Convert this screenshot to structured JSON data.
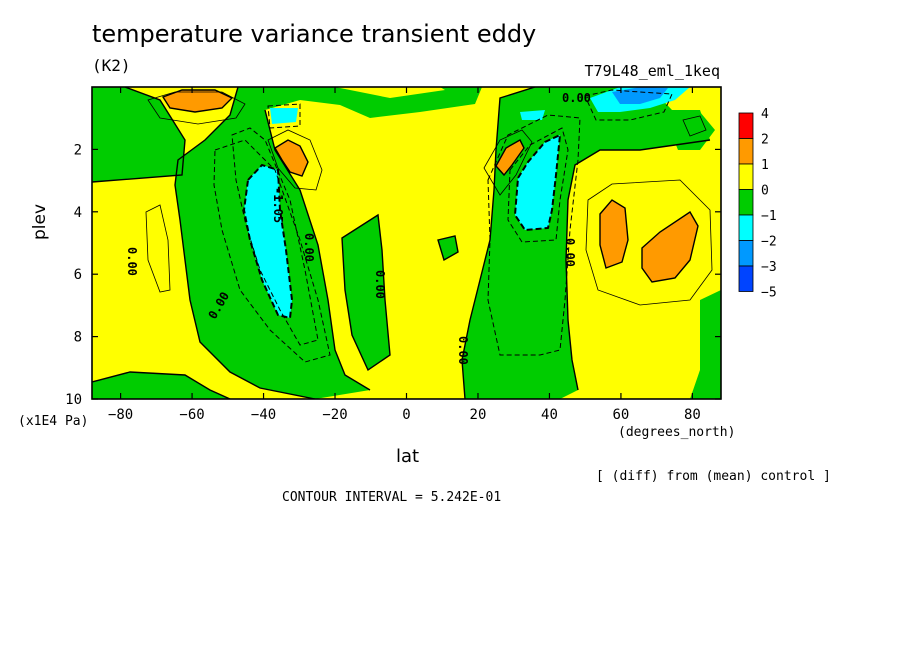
{
  "chart_data": {
    "type": "contour",
    "title": "temperature variance transient eddy",
    "units": "(K2)",
    "experiment": "T79L48_eml_1keq",
    "xlabel": "lat",
    "xunits": "(degrees_north)",
    "ylabel": "plev",
    "yunits": "(x1E4 Pa)",
    "x_ticks": [
      -80,
      -60,
      -40,
      -20,
      0,
      20,
      40,
      60,
      80
    ],
    "x_tick_labels": [
      "-80",
      "-60",
      "-40",
      "-20",
      "0",
      "20",
      "40",
      "60",
      "80"
    ],
    "xlim": [
      -88,
      88
    ],
    "y_ticks": [
      2,
      4,
      6,
      8,
      10
    ],
    "ylim": [
      0,
      10
    ],
    "y_reversed": true,
    "note": "[ (diff) from (mean) control ]",
    "contour_interval_label": "CONTOUR INTERVAL = 5.242E-01",
    "contour_labels": [
      "0.00",
      "0.00",
      "0.00",
      "0.00",
      "0.00",
      "0.00",
      "0.00",
      "-1.05"
    ],
    "colorbar": {
      "levels": [
        "4",
        "2",
        "1",
        "0",
        "-1",
        "-2",
        "-3",
        "-5"
      ],
      "colors": [
        "#ff0000",
        "#ff9a00",
        "#ffff00",
        "#00cc00",
        "#00ffff",
        "#0099ff",
        "#0044ff"
      ]
    },
    "regions": [
      {
        "label": "warm maximum, upper SH",
        "lat": -60,
        "plev": 0.5,
        "class": "1 to 2"
      },
      {
        "label": "warm core",
        "lat": -35,
        "plev": 2.3,
        "class": "1 to 2"
      },
      {
        "label": "cold core",
        "lat": -40,
        "plev": 4.8,
        "class": "-2 to -1"
      },
      {
        "label": "warm core",
        "lat": 32,
        "plev": 2.2,
        "class": "1 to 2"
      },
      {
        "label": "cold core",
        "lat": 37,
        "plev": 3.5,
        "class": "-2 to -1"
      },
      {
        "label": "cold maximum, upper NH",
        "lat": 60,
        "plev": 0.5,
        "class": "-3 to -2"
      },
      {
        "label": "warm region",
        "lat": 70,
        "plev": 5.0,
        "class": "1 to 2"
      }
    ]
  }
}
